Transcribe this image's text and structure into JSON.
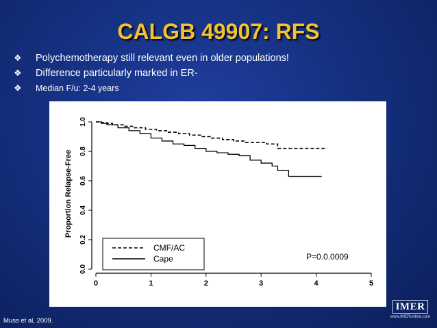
{
  "slide": {
    "title": "CALGB 49907: RFS",
    "bullets": [
      {
        "text": "Polychemotherapy still relevant even in older populations!"
      },
      {
        "text": "Difference particularly marked in ER-"
      },
      {
        "text": "Median F/u: 2-4 years"
      }
    ],
    "bullet_glyph": "❖",
    "citation": "Muss et al, 2009.",
    "logo": {
      "brand": "IMER",
      "url": "www.IMERonline.com"
    }
  },
  "chart_data": {
    "type": "line",
    "title": "",
    "xlabel": "",
    "ylabel": "Proportion Relapse-Free",
    "xlim": [
      0,
      5
    ],
    "ylim": [
      0,
      1.0
    ],
    "x_ticks": [
      "0",
      "1",
      "2",
      "3",
      "4",
      "5"
    ],
    "y_ticks": [
      "0.0",
      "0.2",
      "0.4",
      "0.6",
      "0.8",
      "1.0"
    ],
    "grid": false,
    "legend_position": "bottom-left",
    "annotation": "P=0.0.0009",
    "series": [
      {
        "name": "CMF/AC",
        "style": "dashed",
        "x": [
          0,
          0.1,
          0.2,
          0.3,
          0.5,
          0.7,
          0.9,
          1.1,
          1.3,
          1.5,
          1.7,
          1.9,
          2.1,
          2.3,
          2.5,
          2.7,
          2.9,
          3.1,
          3.3,
          3.3,
          3.6,
          3.9,
          4.2
        ],
        "y": [
          1.0,
          0.995,
          0.99,
          0.98,
          0.97,
          0.96,
          0.95,
          0.94,
          0.93,
          0.92,
          0.91,
          0.9,
          0.89,
          0.88,
          0.87,
          0.86,
          0.86,
          0.85,
          0.85,
          0.82,
          0.82,
          0.82,
          0.82
        ]
      },
      {
        "name": "Cape",
        "style": "solid",
        "x": [
          0,
          0.1,
          0.2,
          0.4,
          0.6,
          0.8,
          1.0,
          1.2,
          1.4,
          1.6,
          1.8,
          2.0,
          2.2,
          2.4,
          2.6,
          2.8,
          3.0,
          3.2,
          3.3,
          3.5,
          3.8,
          4.1
        ],
        "y": [
          1.0,
          0.99,
          0.98,
          0.96,
          0.94,
          0.92,
          0.89,
          0.87,
          0.85,
          0.84,
          0.82,
          0.8,
          0.79,
          0.78,
          0.77,
          0.74,
          0.72,
          0.7,
          0.67,
          0.63,
          0.63,
          0.63
        ]
      }
    ]
  },
  "colors": {
    "title": "#f2c230",
    "background": "#15307f",
    "text": "#ffffff",
    "plot_line": "#000000"
  }
}
